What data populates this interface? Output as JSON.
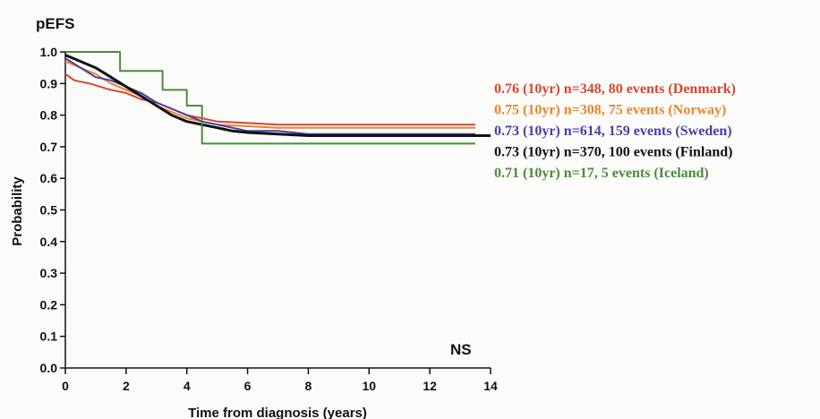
{
  "chart_data": {
    "type": "line",
    "title": "pEFS",
    "xlabel": "Time from diagnosis (years)",
    "ylabel": "Probability",
    "annotation": "NS",
    "xlim": [
      0,
      14
    ],
    "ylim": [
      0.0,
      1.0
    ],
    "x_ticks": [
      0,
      2,
      4,
      6,
      8,
      10,
      12,
      14
    ],
    "x_tick_labels": [
      "0",
      "2",
      "4",
      "6",
      "8",
      "10",
      "12",
      "14"
    ],
    "y_ticks": [
      0.0,
      0.1,
      0.2,
      0.3,
      0.4,
      0.5,
      0.6,
      0.7,
      0.8,
      0.9,
      1.0
    ],
    "y_tick_labels": [
      "0.0",
      "0.1",
      "0.2",
      "0.3",
      "0.4",
      "0.5",
      "0.6",
      "0.7",
      "0.8",
      "0.9",
      "1.0"
    ],
    "grid": false,
    "legend_position": "right",
    "series": [
      {
        "legend": "0.76 (10yr) n=348, 80 events (Denmark)",
        "color": "#d9452f",
        "width": 2,
        "step": false,
        "x": [
          0,
          0.3,
          0.8,
          1.5,
          2.0,
          2.5,
          3.0,
          3.5,
          4.0,
          4.5,
          5.0,
          6.0,
          7.0,
          8.0,
          10.0,
          12.0,
          13.5
        ],
        "y": [
          0.93,
          0.91,
          0.9,
          0.88,
          0.87,
          0.85,
          0.84,
          0.82,
          0.8,
          0.79,
          0.78,
          0.775,
          0.77,
          0.77,
          0.77,
          0.77,
          0.77
        ]
      },
      {
        "legend": "0.75 (10yr) n=308, 75 events (Norway)",
        "color": "#e8862c",
        "width": 2,
        "step": false,
        "x": [
          0,
          0.5,
          1.0,
          1.5,
          2.0,
          2.5,
          3.0,
          3.5,
          4.0,
          4.5,
          5.0,
          6.0,
          7.0,
          8.0,
          10.0,
          12.0,
          13.5
        ],
        "y": [
          0.97,
          0.95,
          0.93,
          0.9,
          0.88,
          0.86,
          0.83,
          0.81,
          0.79,
          0.78,
          0.77,
          0.765,
          0.76,
          0.76,
          0.76,
          0.76,
          0.76
        ]
      },
      {
        "legend": "0.73 (10yr) n=614, 159 events (Sweden)",
        "color": "#4b3fa6",
        "width": 2,
        "step": false,
        "x": [
          0,
          0.5,
          1.0,
          1.5,
          2.0,
          2.5,
          3.0,
          3.5,
          4.0,
          4.5,
          5.0,
          5.5,
          6.0,
          7.0,
          8.0,
          10.0,
          12.0,
          13.5
        ],
        "y": [
          0.98,
          0.95,
          0.92,
          0.91,
          0.89,
          0.87,
          0.84,
          0.82,
          0.8,
          0.78,
          0.77,
          0.76,
          0.75,
          0.75,
          0.74,
          0.74,
          0.74,
          0.74
        ]
      },
      {
        "legend": "0.73 (10yr) n=370, 100 events (Finland)",
        "color": "#111111",
        "width": 3,
        "step": false,
        "x": [
          0,
          0.5,
          1.0,
          1.5,
          2.0,
          2.5,
          3.0,
          3.5,
          4.0,
          4.5,
          5.0,
          5.5,
          6.0,
          7.0,
          8.0,
          10.0,
          12.0,
          14.0
        ],
        "y": [
          0.99,
          0.97,
          0.95,
          0.92,
          0.89,
          0.86,
          0.83,
          0.8,
          0.78,
          0.77,
          0.76,
          0.75,
          0.745,
          0.74,
          0.735,
          0.735,
          0.735,
          0.735
        ]
      },
      {
        "legend": "0.71 (10yr) n=17, 5 events (Iceland)",
        "color": "#4e8a3a",
        "width": 2,
        "step": true,
        "x": [
          0,
          1.8,
          3.2,
          4.0,
          4.5,
          13.5
        ],
        "y": [
          1.0,
          0.94,
          0.88,
          0.83,
          0.71,
          0.71
        ]
      }
    ]
  }
}
